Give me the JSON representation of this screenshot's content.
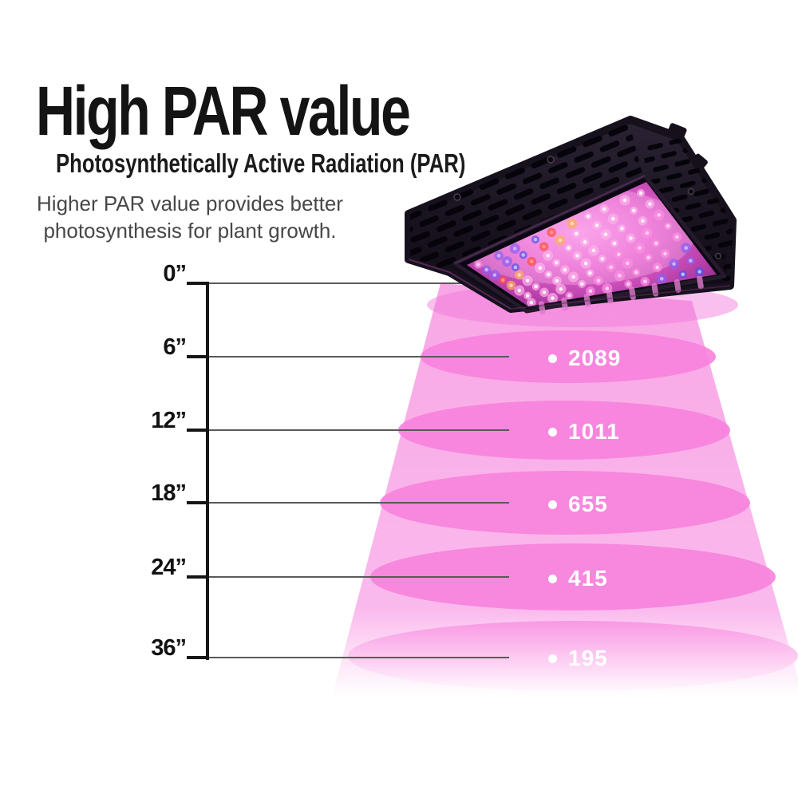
{
  "header": {
    "title": "High PAR value",
    "subtitle": "Photosynthetically Active Radiation (PAR)",
    "description": [
      "Higher PAR value provides better",
      "photosynthesis for plant growth."
    ]
  },
  "diagram": {
    "rows": [
      {
        "distance": "0”"
      },
      {
        "distance": "6”",
        "par": "2089"
      },
      {
        "distance": "12”",
        "par": "1011"
      },
      {
        "distance": "18”",
        "par": "655"
      },
      {
        "distance": "24”",
        "par": "415"
      },
      {
        "distance": "36”",
        "par": "195"
      }
    ]
  },
  "colors": {
    "ink": "#141414",
    "description_text": "#474747",
    "ruler": "#161616",
    "level_line": "#5a5a5a",
    "beam_light": "#fbbfef",
    "beam_top": "#f8a6e5",
    "beam_ellipse": "#f782dd",
    "value_text": "#ffffff",
    "panel_black": "#16111c",
    "led_face_magenta": "#e763cf"
  }
}
